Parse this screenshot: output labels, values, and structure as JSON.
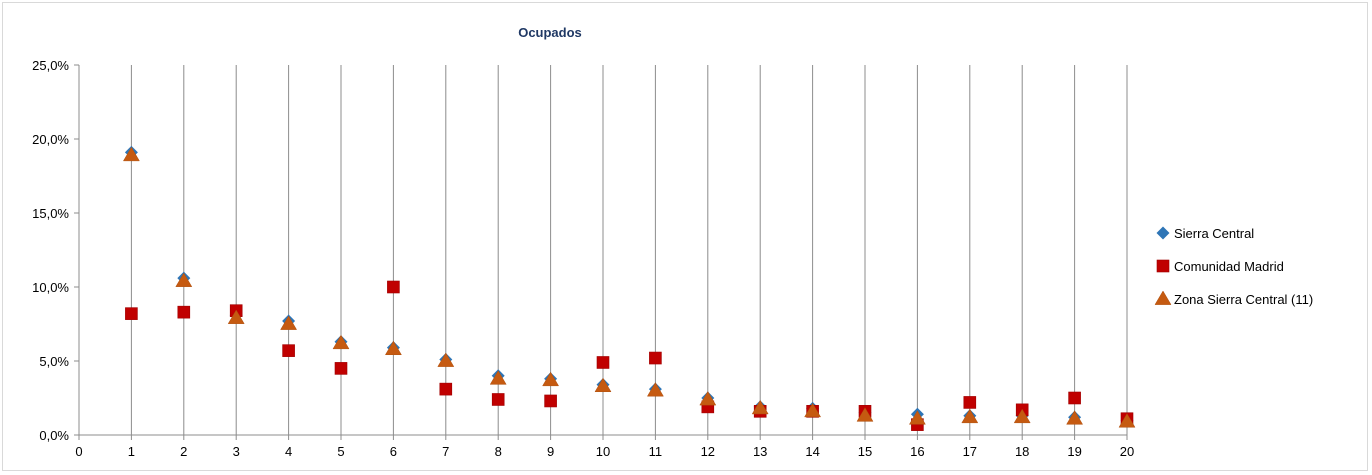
{
  "chart_data": {
    "type": "scatter",
    "title": "Ocupados",
    "xlabel": "",
    "ylabel": "",
    "xlim": [
      0,
      20
    ],
    "ylim": [
      0,
      0.25
    ],
    "x_ticks": [
      "0",
      "1",
      "2",
      "3",
      "4",
      "5",
      "6",
      "7",
      "8",
      "9",
      "10",
      "11",
      "12",
      "13",
      "14",
      "15",
      "16",
      "17",
      "18",
      "19",
      "20"
    ],
    "y_ticks": [
      {
        "value": 0.0,
        "label": "0,0%"
      },
      {
        "value": 0.05,
        "label": "5,0%"
      },
      {
        "value": 0.1,
        "label": "10,0%"
      },
      {
        "value": 0.15,
        "label": "15,0%"
      },
      {
        "value": 0.2,
        "label": "20,0%"
      },
      {
        "value": 0.25,
        "label": "25,0%"
      }
    ],
    "grid": "vertical",
    "legend_position": "right",
    "x": [
      1,
      2,
      3,
      4,
      5,
      6,
      7,
      8,
      9,
      10,
      11,
      12,
      13,
      14,
      15,
      16,
      17,
      18,
      19,
      20
    ],
    "series": [
      {
        "name": "Sierra Central",
        "marker": "diamond",
        "color": "#2e75b6",
        "values": [
          0.191,
          0.106,
          0.081,
          0.077,
          0.063,
          0.059,
          0.051,
          0.04,
          0.038,
          0.034,
          0.031,
          0.025,
          0.019,
          0.018,
          0.015,
          0.014,
          0.013,
          0.013,
          0.012,
          0.01
        ]
      },
      {
        "name": "Comunidad Madrid",
        "marker": "square",
        "color": "#c00000",
        "values": [
          0.082,
          0.083,
          0.084,
          0.057,
          0.045,
          0.1,
          0.031,
          0.024,
          0.023,
          0.049,
          0.052,
          0.019,
          0.016,
          0.016,
          0.016,
          0.007,
          0.022,
          0.017,
          0.025,
          0.011
        ]
      },
      {
        "name": "Zona Sierra Central (11)",
        "marker": "triangle",
        "color": "#c55a11",
        "values": [
          0.189,
          0.104,
          0.079,
          0.075,
          0.062,
          0.058,
          0.05,
          0.038,
          0.037,
          0.033,
          0.03,
          0.024,
          0.018,
          0.016,
          0.013,
          0.011,
          0.012,
          0.012,
          0.011,
          0.009
        ]
      }
    ]
  }
}
